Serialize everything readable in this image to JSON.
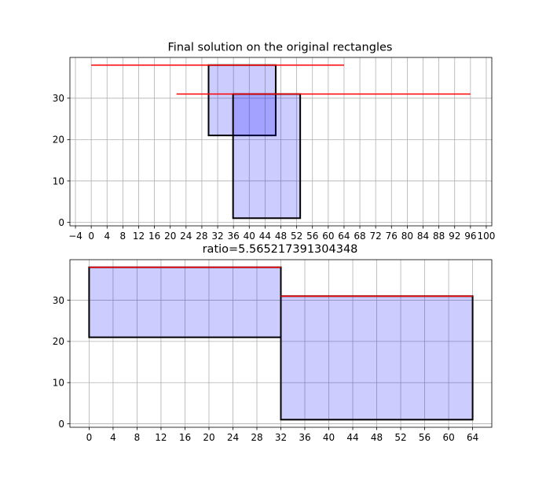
{
  "chart_data": [
    {
      "type": "rectangles",
      "title": "Final solution on the original rectangles",
      "xlim": [
        -5.4,
        101.4
      ],
      "ylim": [
        -0.85,
        39.85
      ],
      "x_ticks": [
        -4,
        0,
        4,
        8,
        12,
        16,
        20,
        24,
        28,
        32,
        36,
        40,
        44,
        48,
        52,
        56,
        60,
        64,
        68,
        72,
        76,
        80,
        84,
        88,
        92,
        96,
        100
      ],
      "y_ticks": [
        0,
        10,
        20,
        30
      ],
      "grid": true,
      "rectangles": [
        {
          "x0": 29.7,
          "x1": 46.7,
          "y0": 21,
          "y1": 38
        },
        {
          "x0": 35.9,
          "x1": 52.9,
          "y0": 1,
          "y1": 31
        }
      ],
      "lines": [
        {
          "x0": 0,
          "x1": 64,
          "y": 38,
          "color": "#ff0000"
        },
        {
          "x0": 21.6,
          "x1": 96,
          "y": 31,
          "color": "#ff0000"
        }
      ]
    },
    {
      "type": "rectangles",
      "title": "ratio=5.565217391304348",
      "xlim": [
        -3.2,
        67.2
      ],
      "ylim": [
        -0.85,
        39.85
      ],
      "x_ticks": [
        0,
        4,
        8,
        12,
        16,
        20,
        24,
        28,
        32,
        36,
        40,
        44,
        48,
        52,
        56,
        60,
        64
      ],
      "y_ticks": [
        0,
        10,
        20,
        30
      ],
      "grid": true,
      "rectangles": [
        {
          "x0": 0,
          "x1": 32,
          "y0": 21,
          "y1": 38
        },
        {
          "x0": 32,
          "x1": 64,
          "y0": 1,
          "y1": 31
        }
      ],
      "lines": [
        {
          "x0": 0,
          "x1": 32,
          "y": 38,
          "color": "#ff0000"
        },
        {
          "x0": 32,
          "x1": 64,
          "y": 31,
          "color": "#ff0000"
        }
      ]
    }
  ],
  "colors": {
    "rect_fill": "#0000ff",
    "rect_edge": "#000000",
    "grid": "#b0b0b0"
  }
}
